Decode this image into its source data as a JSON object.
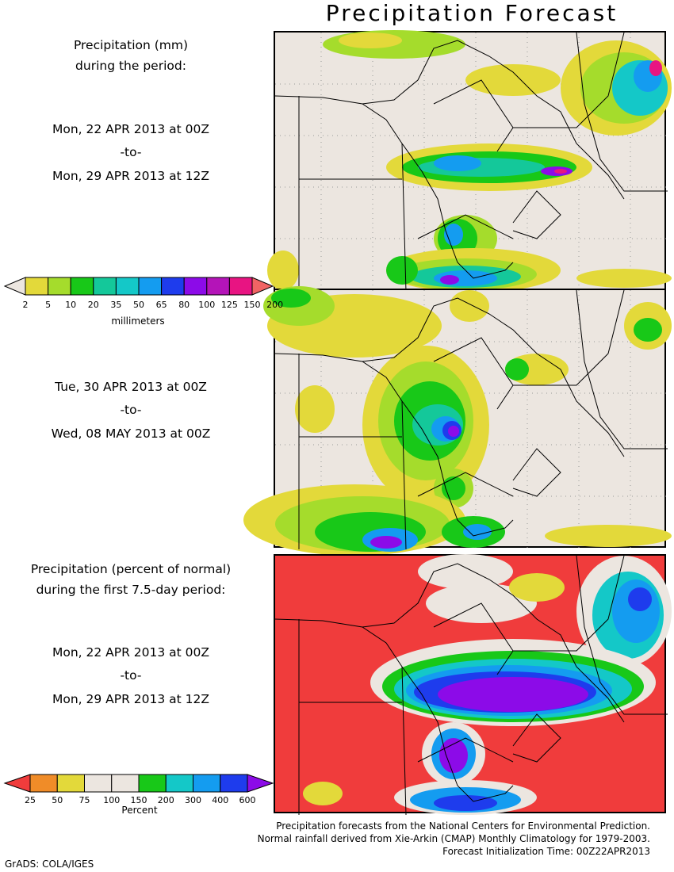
{
  "title": "Precipitation Forecast",
  "panel1": {
    "heading_line1": "Precipitation (mm)",
    "heading_line2": "during the period:",
    "start": "Mon, 22 APR 2013 at 00Z",
    "to": "-to-",
    "end": "Mon, 29 APR 2013 at 12Z"
  },
  "panel2": {
    "start": "Tue, 30 APR 2013 at 00Z",
    "to": "-to-",
    "end": "Wed, 08 MAY 2013 at 00Z"
  },
  "panel3": {
    "heading_line1": "Precipitation (percent of normal)",
    "heading_line2": "during the first 7.5-day period:",
    "start": "Mon, 22 APR 2013 at 00Z",
    "to": "-to-",
    "end": "Mon, 29 APR 2013 at 12Z"
  },
  "legend_mm": {
    "unit": "millimeters",
    "ticks": [
      "2",
      "5",
      "10",
      "20",
      "35",
      "50",
      "65",
      "80",
      "100",
      "125",
      "150",
      "200"
    ],
    "colors": [
      "#ece6e0",
      "#e3d93a",
      "#a5dc2c",
      "#18c818",
      "#14c89a",
      "#14c8c8",
      "#149cf0",
      "#1e3ced",
      "#8c0be8",
      "#b414b8",
      "#e81482",
      "#f06464"
    ]
  },
  "legend_pct": {
    "unit": "Percent",
    "ticks": [
      "25",
      "50",
      "75",
      "100",
      "150",
      "200",
      "300",
      "400",
      "600"
    ],
    "colors": [
      "#f03c3c",
      "#f08c28",
      "#e3d93a",
      "#ece6e0",
      "#ece6e0",
      "#18c818",
      "#14c8c8",
      "#149cf0",
      "#1e3ced",
      "#8c0be8"
    ]
  },
  "credits": {
    "line1": "Precipitation forecasts from the National Centers for Environmental Prediction.",
    "line2": "Normal rainfall derived from Xie-Arkin (CMAP) Monthly Climatology for 1979-2003.",
    "line3": "Forecast Initialization Time: 00Z22APR2013"
  },
  "software": "GrADS: COLA/IGES"
}
